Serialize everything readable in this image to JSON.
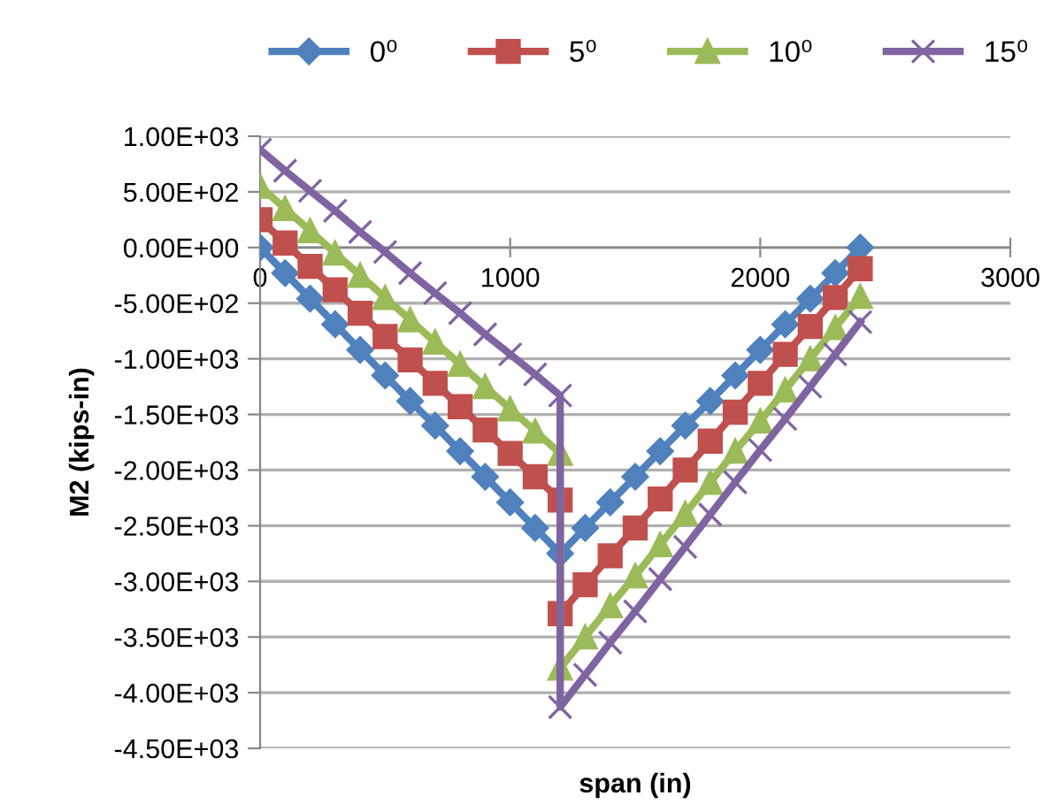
{
  "chart_data": {
    "type": "line",
    "xlabel": "span (in)",
    "ylabel": "M2 (kips-in)",
    "xlim": [
      0,
      3000
    ],
    "xticks": [
      0,
      1000,
      2000,
      3000
    ],
    "ylim": [
      -4500,
      1000
    ],
    "yticks": [
      {
        "value": 1000,
        "label": "1.00E+03"
      },
      {
        "value": 500,
        "label": "5.00E+02"
      },
      {
        "value": 0,
        "label": "0.00E+00"
      },
      {
        "value": -500,
        "label": "-5.00E+02"
      },
      {
        "value": -1000,
        "label": "-1.00E+03"
      },
      {
        "value": -1500,
        "label": "-1.50E+03"
      },
      {
        "value": -2000,
        "label": "-2.00E+03"
      },
      {
        "value": -2500,
        "label": "-2.50E+03"
      },
      {
        "value": -3000,
        "label": "-3.00E+03"
      },
      {
        "value": -3500,
        "label": "-3.50E+03"
      },
      {
        "value": -4000,
        "label": "-4.00E+03"
      },
      {
        "value": -4500,
        "label": "-4.50E+03"
      }
    ],
    "grid": "y",
    "legend": "top",
    "series": [
      {
        "name": "0⁰",
        "color": "#4f81bd",
        "marker": "diamond",
        "x": [
          0,
          100,
          200,
          300,
          400,
          500,
          600,
          700,
          800,
          900,
          1000,
          1100,
          1200,
          1300,
          1400,
          1500,
          1600,
          1700,
          1800,
          1900,
          2000,
          2100,
          2200,
          2300,
          2400
        ],
        "values": [
          0,
          -230,
          -460,
          -690,
          -920,
          -1150,
          -1380,
          -1600,
          -1830,
          -2060,
          -2290,
          -2520,
          -2750,
          -2520,
          -2290,
          -2060,
          -1830,
          -1600,
          -1380,
          -1150,
          -920,
          -690,
          -460,
          -230,
          0
        ]
      },
      {
        "name": "5⁰",
        "color": "#c0504d",
        "marker": "square",
        "x": [
          0,
          100,
          200,
          300,
          400,
          500,
          600,
          700,
          800,
          900,
          1000,
          1100,
          1200,
          1200,
          1300,
          1400,
          1500,
          1600,
          1700,
          1800,
          1900,
          2000,
          2100,
          2200,
          2300,
          2400
        ],
        "values": [
          250,
          40,
          -170,
          -380,
          -590,
          -800,
          -1010,
          -1220,
          -1430,
          -1640,
          -1850,
          -2060,
          -2270,
          -3290,
          -3030,
          -2770,
          -2520,
          -2260,
          -2000,
          -1740,
          -1480,
          -1220,
          -960,
          -710,
          -450,
          -190
        ]
      },
      {
        "name": "10⁰",
        "color": "#9bbb59",
        "marker": "triangle",
        "x": [
          0,
          100,
          200,
          300,
          400,
          500,
          600,
          700,
          800,
          900,
          1000,
          1100,
          1200,
          1200,
          1300,
          1400,
          1500,
          1600,
          1700,
          1800,
          1900,
          2000,
          2100,
          2200,
          2300,
          2400
        ],
        "values": [
          550,
          350,
          150,
          -50,
          -250,
          -450,
          -650,
          -850,
          -1050,
          -1250,
          -1450,
          -1650,
          -1850,
          -3780,
          -3500,
          -3220,
          -2950,
          -2670,
          -2390,
          -2110,
          -1830,
          -1560,
          -1280,
          -1000,
          -720,
          -440
        ]
      },
      {
        "name": "15⁰",
        "color": "#8064a2",
        "marker": "cross",
        "x": [
          0,
          100,
          200,
          300,
          400,
          500,
          600,
          700,
          800,
          900,
          1000,
          1100,
          1200,
          1200,
          1300,
          1400,
          1500,
          1600,
          1700,
          1800,
          1900,
          2000,
          2100,
          2200,
          2300,
          2400
        ],
        "values": [
          880,
          690,
          510,
          330,
          140,
          -40,
          -230,
          -410,
          -590,
          -780,
          -960,
          -1140,
          -1330,
          -4130,
          -3840,
          -3550,
          -3270,
          -2980,
          -2690,
          -2400,
          -2110,
          -1820,
          -1540,
          -1250,
          -960,
          -670
        ]
      }
    ]
  }
}
